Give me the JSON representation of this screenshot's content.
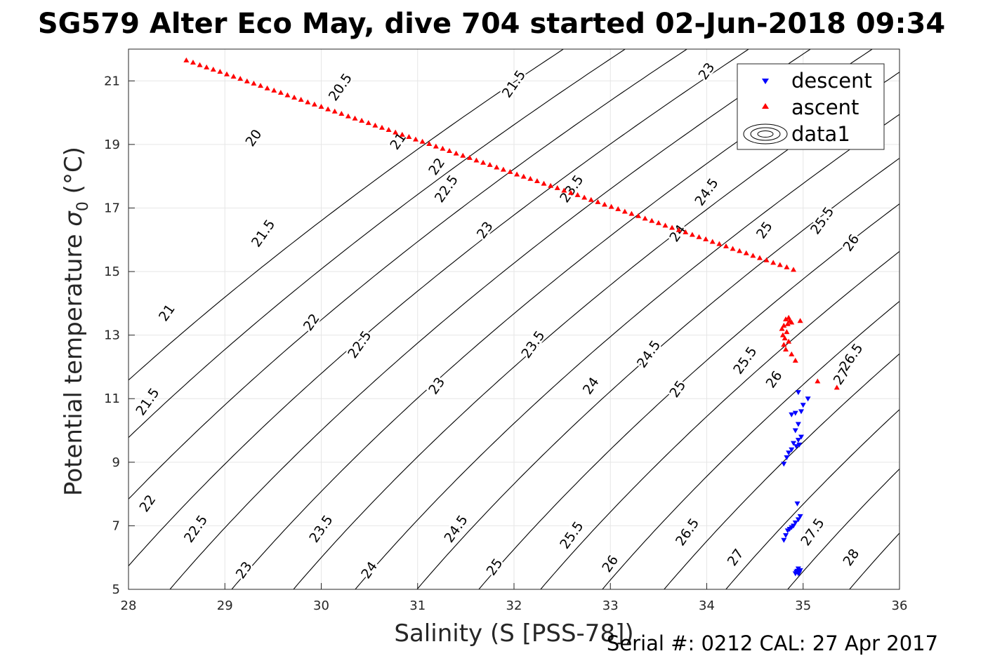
{
  "title": "SG579 Alter Eco May, dive 704 started 02-Jun-2018 09:34",
  "footer": "Serial #: 0212  CAL: 27 Apr 2017",
  "chart_data": {
    "type": "scatter",
    "title": "SG579 Alter Eco May, dive 704 started 02-Jun-2018 09:34",
    "xlabel": "Salinity (S [PSS-78])",
    "ylabel_text": "Potential temperature ",
    "ylabel_symbol": "σ",
    "ylabel_sub": "0",
    "ylabel_unit": " (°C)",
    "xlim": [
      28,
      36
    ],
    "ylim": [
      5,
      22
    ],
    "xticks": [
      28,
      29,
      30,
      31,
      32,
      33,
      34,
      35,
      36
    ],
    "yticks": [
      5,
      7,
      9,
      11,
      13,
      15,
      17,
      19,
      21
    ],
    "grid": true,
    "legend_position": "top-right",
    "legend": [
      "descent",
      "ascent",
      "data1"
    ],
    "colors": {
      "descent": "#0000ff",
      "ascent": "#ff0000",
      "contour": "#000000",
      "grid": "#e6e6e6"
    },
    "contours": {
      "levels": [
        19.5,
        20,
        20.5,
        21,
        21.5,
        22,
        22.5,
        23,
        23.5,
        24,
        24.5,
        25,
        25.5,
        26,
        26.5,
        27,
        27.5,
        28,
        28.5
      ],
      "labels": [
        {
          "text": "20",
          "s": 29.3,
          "t": 19.2
        },
        {
          "text": "20.5",
          "s": 30.2,
          "t": 20.8
        },
        {
          "text": "21.5",
          "s": 32.0,
          "t": 20.9
        },
        {
          "text": "23",
          "s": 34.0,
          "t": 21.3
        },
        {
          "text": "21",
          "s": 30.8,
          "t": 19.1
        },
        {
          "text": "22",
          "s": 31.2,
          "t": 18.3
        },
        {
          "text": "22.5",
          "s": 31.3,
          "t": 17.6
        },
        {
          "text": "23",
          "s": 31.7,
          "t": 16.3
        },
        {
          "text": "23.5",
          "s": 32.6,
          "t": 17.6
        },
        {
          "text": "24",
          "s": 33.7,
          "t": 16.2
        },
        {
          "text": "24.5",
          "s": 34.0,
          "t": 17.5
        },
        {
          "text": "25",
          "s": 34.6,
          "t": 16.3
        },
        {
          "text": "25.5",
          "s": 35.2,
          "t": 16.6
        },
        {
          "text": "26",
          "s": 35.5,
          "t": 15.9
        },
        {
          "text": "21.5",
          "s": 29.4,
          "t": 16.2
        },
        {
          "text": "22",
          "s": 29.9,
          "t": 13.4
        },
        {
          "text": "22.5",
          "s": 30.4,
          "t": 12.7
        },
        {
          "text": "23",
          "s": 31.2,
          "t": 11.4
        },
        {
          "text": "23.5",
          "s": 32.2,
          "t": 12.7
        },
        {
          "text": "24",
          "s": 32.8,
          "t": 11.4
        },
        {
          "text": "24.5",
          "s": 33.4,
          "t": 12.4
        },
        {
          "text": "25",
          "s": 33.7,
          "t": 11.3
        },
        {
          "text": "25.5",
          "s": 34.4,
          "t": 12.2
        },
        {
          "text": "26",
          "s": 34.7,
          "t": 11.6
        },
        {
          "text": "26.5",
          "s": 35.5,
          "t": 12.3
        },
        {
          "text": "27",
          "s": 35.4,
          "t": 11.7
        },
        {
          "text": "21",
          "s": 28.4,
          "t": 13.7
        },
        {
          "text": "21.5",
          "s": 28.2,
          "t": 10.9
        },
        {
          "text": "22",
          "s": 28.2,
          "t": 7.7
        },
        {
          "text": "22.5",
          "s": 28.7,
          "t": 6.9
        },
        {
          "text": "23",
          "s": 29.2,
          "t": 5.6
        },
        {
          "text": "23.5",
          "s": 30.0,
          "t": 6.9
        },
        {
          "text": "24",
          "s": 30.5,
          "t": 5.6
        },
        {
          "text": "24.5",
          "s": 31.4,
          "t": 6.9
        },
        {
          "text": "25",
          "s": 31.8,
          "t": 5.7
        },
        {
          "text": "25.5",
          "s": 32.6,
          "t": 6.7
        },
        {
          "text": "26",
          "s": 33.0,
          "t": 5.8
        },
        {
          "text": "26.5",
          "s": 33.8,
          "t": 6.8
        },
        {
          "text": "27",
          "s": 34.3,
          "t": 6.0
        },
        {
          "text": "27.5",
          "s": 35.1,
          "t": 6.8
        },
        {
          "text": "28",
          "s": 35.5,
          "t": 6.0
        }
      ]
    },
    "series": [
      {
        "name": "ascent",
        "marker": "triangle-up",
        "x": [
          28.6,
          28.67,
          28.74,
          28.81,
          28.88,
          28.95,
          29.02,
          29.09,
          29.16,
          29.23,
          29.3,
          29.37,
          29.44,
          29.51,
          29.58,
          29.65,
          29.72,
          29.79,
          29.86,
          29.93,
          30.0,
          30.07,
          30.14,
          30.21,
          30.28,
          30.35,
          30.42,
          30.49,
          30.56,
          30.63,
          30.7,
          30.77,
          30.84,
          30.91,
          30.98,
          31.05,
          31.12,
          31.19,
          31.26,
          31.33,
          31.4,
          31.47,
          31.54,
          31.61,
          31.68,
          31.75,
          31.82,
          31.89,
          31.96,
          32.03,
          32.1,
          32.17,
          32.24,
          32.31,
          32.38,
          32.45,
          32.52,
          32.59,
          32.66,
          32.73,
          32.8,
          32.87,
          32.94,
          33.01,
          33.08,
          33.15,
          33.22,
          33.29,
          33.36,
          33.43,
          33.5,
          33.57,
          33.64,
          33.71,
          33.78,
          33.85,
          33.92,
          33.99,
          34.06,
          34.13,
          34.2,
          34.27,
          34.34,
          34.41,
          34.48,
          34.55,
          34.62,
          34.69,
          34.76,
          34.83,
          34.9,
          34.97,
          34.85,
          34.82,
          34.88,
          34.84,
          34.86,
          34.8,
          34.78,
          34.83,
          34.79,
          34.81,
          34.85,
          34.8,
          34.82,
          34.88,
          34.92,
          35.15,
          35.35
        ],
        "y": [
          21.65,
          21.58,
          21.5,
          21.43,
          21.36,
          21.29,
          21.21,
          21.14,
          21.07,
          20.99,
          20.92,
          20.85,
          20.77,
          20.7,
          20.63,
          20.55,
          20.48,
          20.41,
          20.33,
          20.26,
          20.19,
          20.11,
          20.04,
          19.97,
          19.89,
          19.82,
          19.75,
          19.68,
          19.6,
          19.53,
          19.46,
          19.38,
          19.31,
          19.24,
          19.16,
          19.09,
          19.02,
          18.94,
          18.87,
          18.8,
          18.72,
          18.65,
          18.58,
          18.5,
          18.43,
          18.36,
          18.28,
          18.21,
          18.14,
          18.06,
          17.99,
          17.92,
          17.85,
          17.77,
          17.7,
          17.63,
          17.55,
          17.48,
          17.41,
          17.33,
          17.26,
          17.19,
          17.11,
          17.04,
          16.97,
          16.89,
          16.82,
          16.75,
          16.67,
          16.6,
          16.53,
          16.45,
          16.38,
          16.31,
          16.24,
          16.16,
          16.09,
          16.02,
          15.94,
          15.87,
          15.8,
          15.72,
          15.65,
          15.58,
          15.5,
          15.43,
          15.36,
          15.28,
          15.21,
          15.14,
          15.06,
          13.45,
          13.55,
          13.5,
          13.4,
          13.35,
          13.45,
          13.3,
          13.2,
          13.1,
          13.0,
          12.9,
          12.8,
          12.7,
          12.55,
          12.4,
          12.2,
          11.55,
          11.35
        ]
      },
      {
        "name": "descent",
        "marker": "triangle-down",
        "x": [
          34.95,
          35.05,
          35.0,
          34.98,
          34.92,
          34.88,
          34.95,
          34.92,
          34.98,
          34.95,
          34.9,
          34.93,
          34.96,
          34.88,
          34.85,
          34.83,
          34.8,
          34.94,
          34.97,
          34.95,
          34.92,
          34.9,
          34.88,
          34.86,
          34.84,
          34.82,
          34.8,
          34.95,
          34.97,
          34.93,
          34.92,
          34.96,
          34.94,
          34.95
        ],
        "y": [
          11.2,
          11.0,
          10.8,
          10.6,
          10.55,
          10.5,
          10.2,
          10.0,
          9.8,
          9.7,
          9.6,
          9.5,
          9.55,
          9.4,
          9.3,
          9.15,
          8.95,
          7.7,
          7.3,
          7.2,
          7.1,
          7.0,
          6.95,
          6.9,
          6.85,
          6.7,
          6.55,
          5.65,
          5.6,
          5.55,
          5.5,
          5.52,
          5.58,
          5.5
        ]
      }
    ]
  }
}
